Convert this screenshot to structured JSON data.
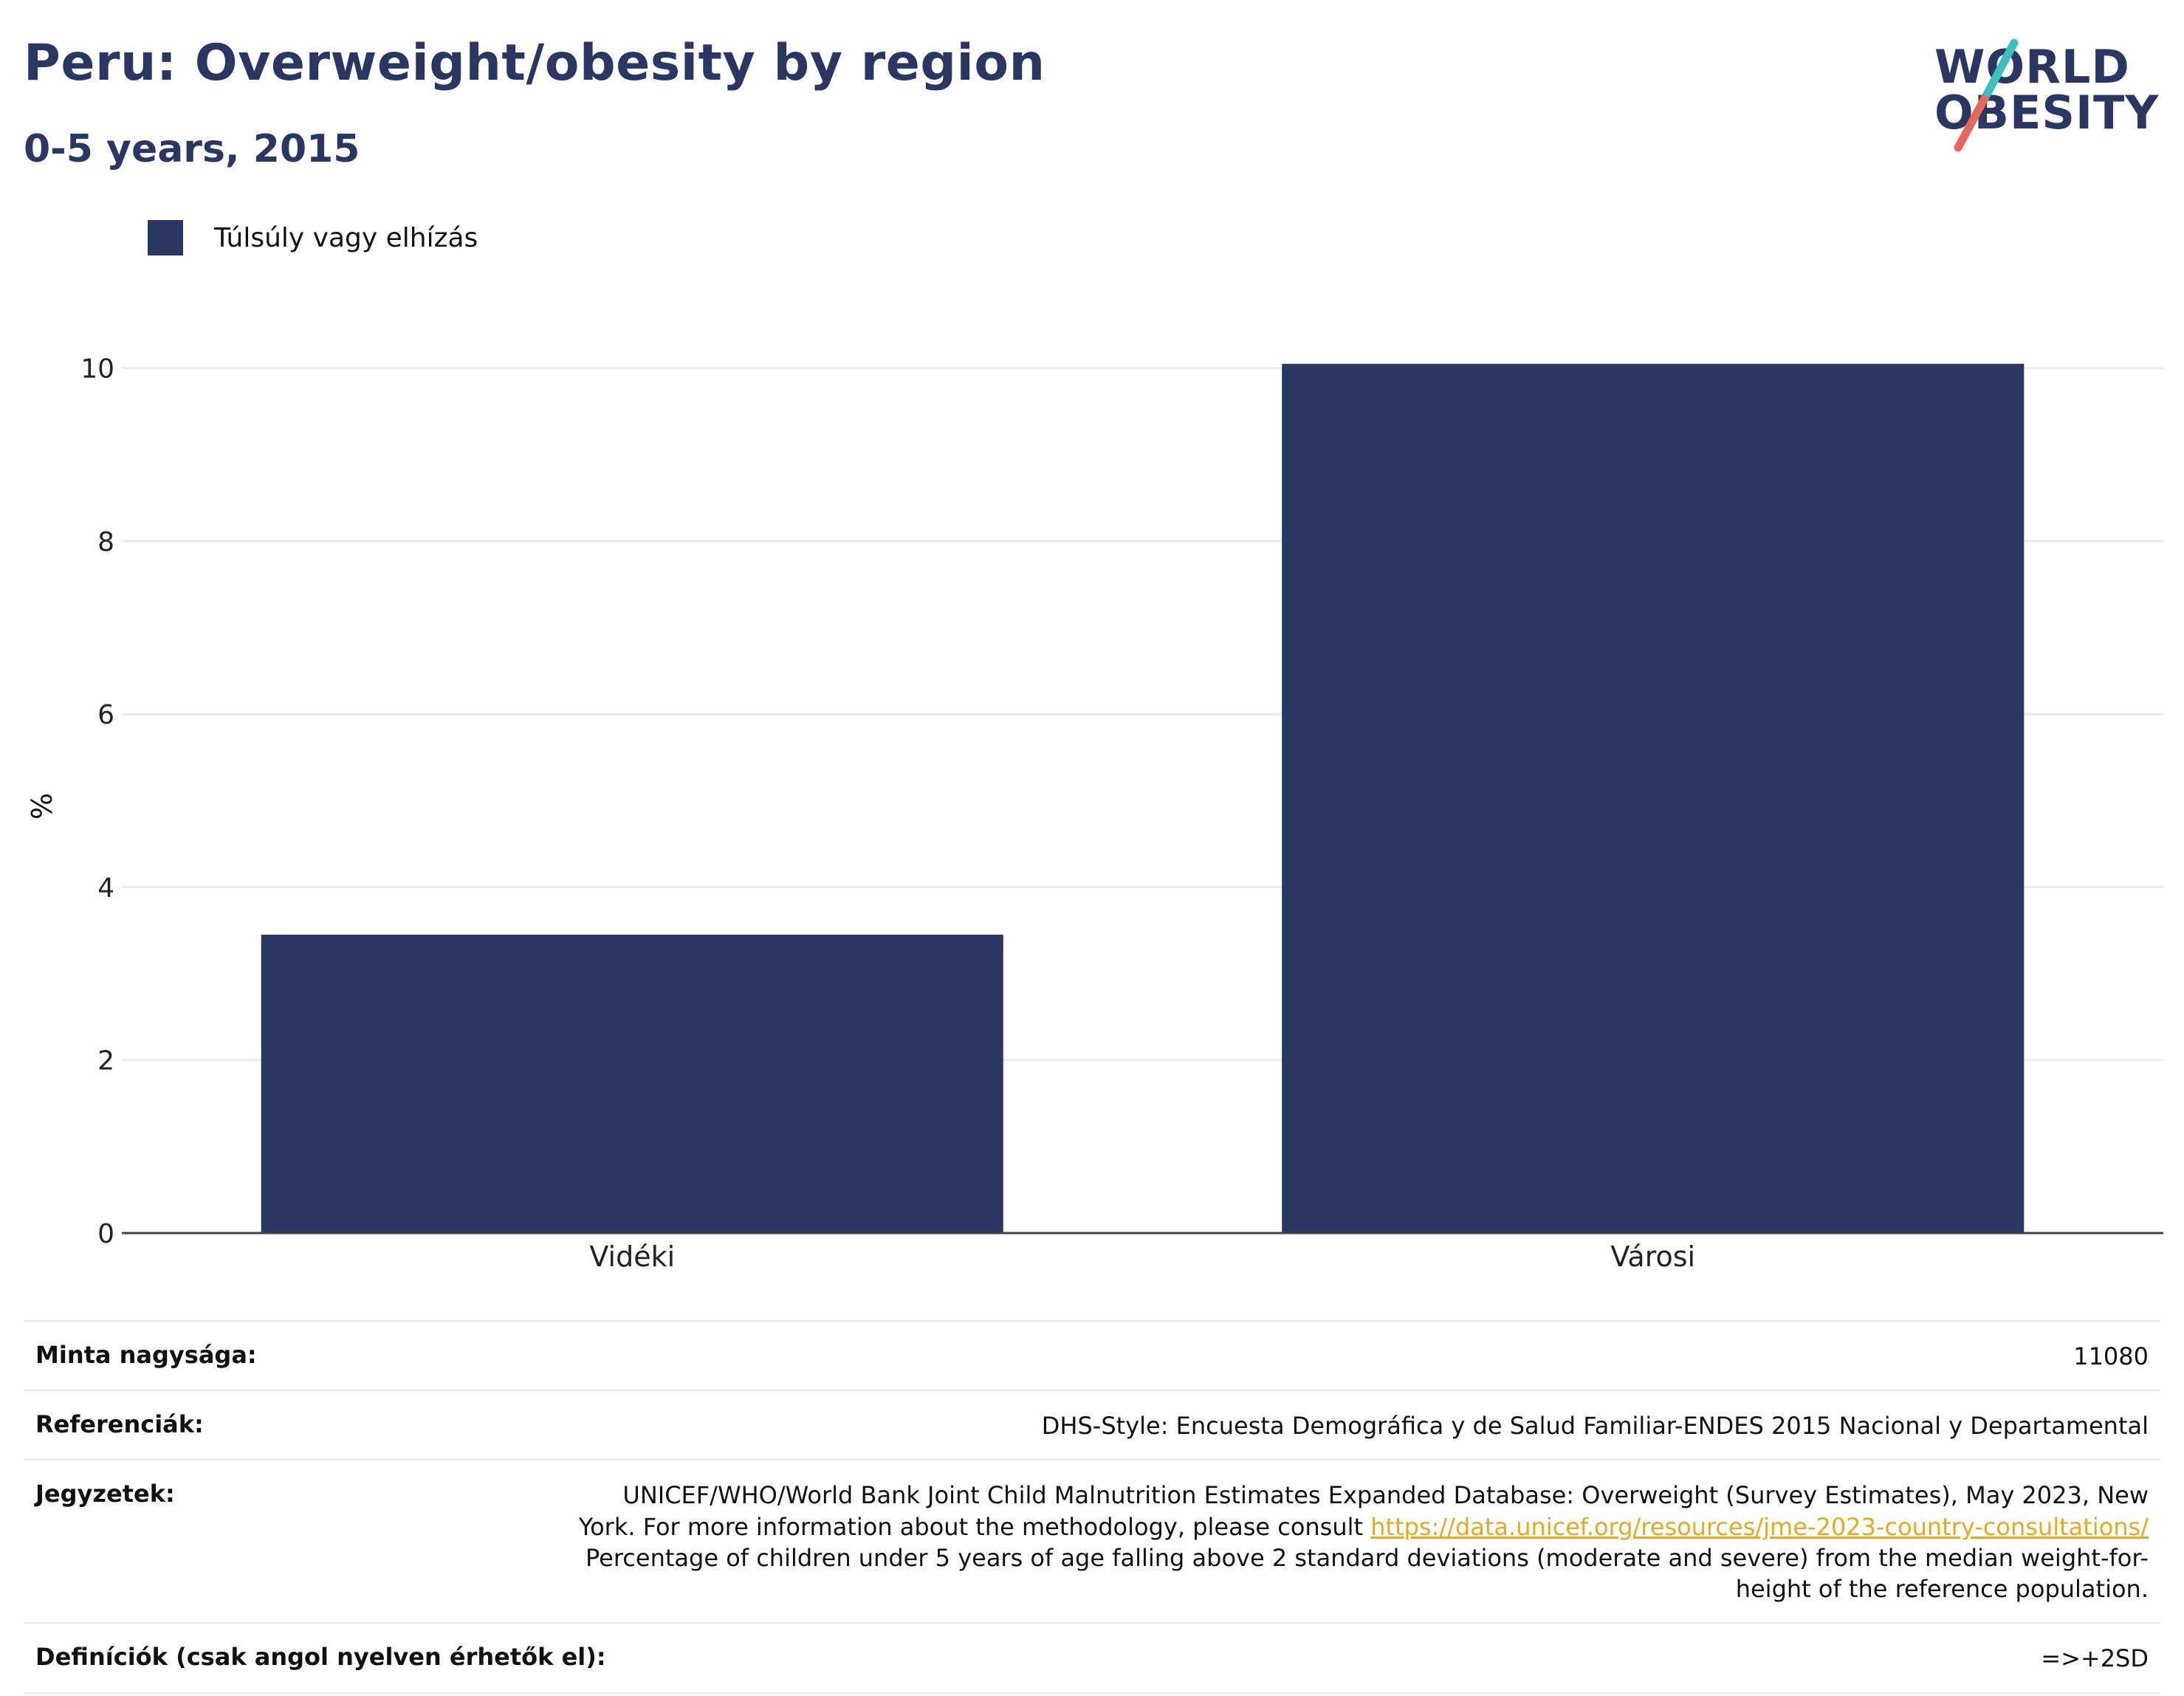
{
  "header": {
    "title": "Peru: Overweight/obesity by region",
    "subtitle": "0-5 years, 2015"
  },
  "logo": {
    "line1": "WORLD",
    "line2": "OBESITY"
  },
  "colors": {
    "bar": "#2a3762",
    "accent_teal": "#3bbfbf",
    "accent_coral": "#e8665a",
    "link": "#e4a91f"
  },
  "chart_data": {
    "type": "bar",
    "categories": [
      "Vidéki",
      "Városi"
    ],
    "series": [
      {
        "name": "Túlsúly vagy elhízás",
        "values": [
          3.45,
          10.05
        ]
      }
    ],
    "ylabel": "%",
    "xlabel": "",
    "ylim": [
      0,
      10.5
    ],
    "yticks": [
      0,
      2,
      4,
      6,
      8,
      10
    ],
    "grid": true,
    "legend": "top-left"
  },
  "info": {
    "sample_size_label": "Minta nagysága:",
    "sample_size_value": "11080",
    "references_label": "Referenciák:",
    "references_value": "DHS-Style: Encuesta Demográfica y de Salud Familiar-ENDES 2015 Nacional y Departamental",
    "notes_label": "Jegyzetek:",
    "notes_text_1": "UNICEF/WHO/World Bank Joint Child Malnutrition Estimates Expanded Database: Overweight (Survey Estimates), May 2023, New York. For more information about the methodology, please consult",
    "notes_link": "https://data.unicef.org/resources/jme-2023-country-consultations/",
    "notes_text_2": "Percentage of children under 5 years of age falling above 2 standard deviations (moderate and severe) from the median weight-for-height of the reference population.",
    "definitions_label": "Definíciók (csak angol nyelven érhetők el):",
    "definitions_value": "=>+2SD"
  }
}
